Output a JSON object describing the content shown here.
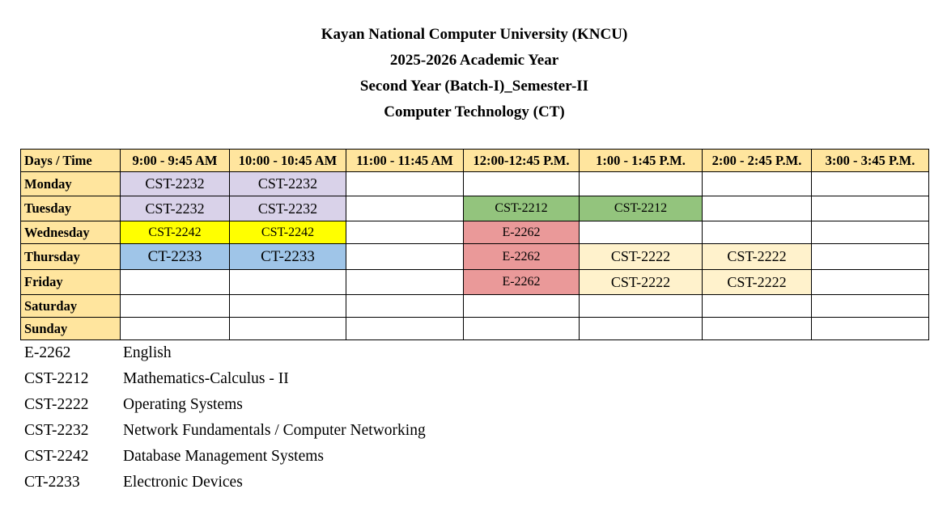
{
  "header": {
    "university": "Kayan National  Computer University (KNCU)",
    "academic_year": "2025-2026 Academic Year",
    "batch": "Second Year (Batch-I)_Semester-II",
    "program": "Computer Technology (CT)"
  },
  "timetable": {
    "corner": "Days / Time",
    "slots": [
      "9:00 - 9:45 AM",
      "10:00 - 10:45 AM",
      "11:00 - 11:45 AM",
      "12:00-12:45  P.M.",
      "1:00 - 1:45 P.M.",
      "2:00 - 2:45 P.M.",
      "3:00 - 3:45 P.M."
    ],
    "rows": [
      {
        "day": "Monday",
        "cells": [
          "CST-2232",
          "CST-2232",
          "",
          "",
          "",
          "",
          ""
        ]
      },
      {
        "day": "Tuesday",
        "cells": [
          "CST-2232",
          "CST-2232",
          "",
          "CST-2212",
          "CST-2212",
          "",
          ""
        ]
      },
      {
        "day": "Wednesday",
        "cells": [
          "CST-2242",
          "CST-2242",
          "",
          "E-2262",
          "",
          "",
          ""
        ]
      },
      {
        "day": "Thursday",
        "cells": [
          "CT-2233",
          "CT-2233",
          "",
          "E-2262",
          "CST-2222",
          "CST-2222",
          ""
        ]
      },
      {
        "day": "Friday",
        "cells": [
          "",
          "",
          "",
          "E-2262",
          "CST-2222",
          "CST-2222",
          ""
        ]
      },
      {
        "day": "Saturday",
        "cells": [
          "",
          "",
          "",
          "",
          "",
          "",
          ""
        ]
      },
      {
        "day": "Sunday",
        "cells": [
          "",
          "",
          "",
          "",
          "",
          "",
          ""
        ]
      }
    ]
  },
  "colors": {
    "header_bg": "#ffe59e",
    "CST-2232": "#d9d2e9",
    "CST-2242": "#ffff00",
    "CT-2233": "#9fc5e8",
    "CST-2212": "#93c47d",
    "E-2262": "#ea9999",
    "CST-2222": "#fff2cc"
  },
  "legend": [
    {
      "code": "E-2262",
      "name": "English"
    },
    {
      "code": "CST-2212",
      "name": "Mathematics-Calculus - II"
    },
    {
      "code": "CST-2222",
      "name": "Operating Systems"
    },
    {
      "code": "CST-2232",
      "name": "Network Fundamentals / Computer Networking"
    },
    {
      "code": "CST-2242",
      "name": "Database Management Systems"
    },
    {
      "code": "CT-2233",
      "name": "Electronic Devices"
    }
  ]
}
